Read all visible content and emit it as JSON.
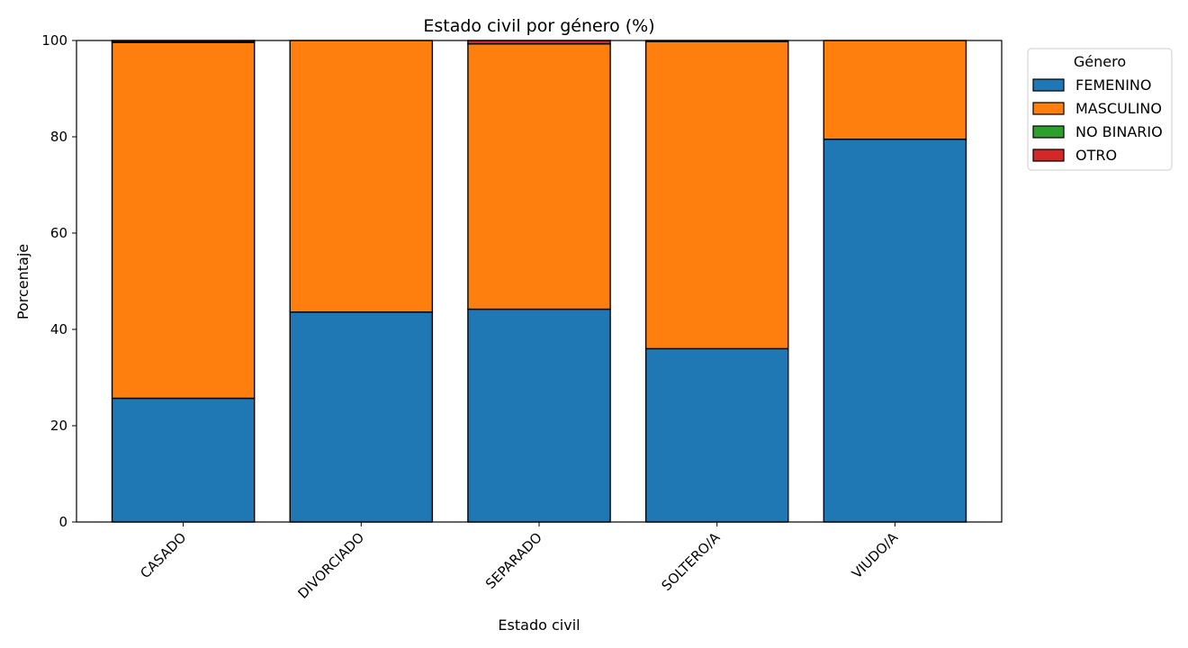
{
  "chart_data": {
    "type": "bar",
    "stacked": true,
    "title": "Estado civil por género (%)",
    "xlabel": "Estado civil",
    "ylabel": "Porcentaje",
    "ylim": [
      0,
      100
    ],
    "yticks": [
      0,
      20,
      40,
      60,
      80,
      100
    ],
    "categories": [
      "CASADO",
      "DIVORCIADO",
      "SEPARADO",
      "SOLTERO/A",
      "VIUDO/A"
    ],
    "legend": {
      "title": "Género",
      "placement": "outside-top-right"
    },
    "grid": false,
    "series": [
      {
        "name": "FEMENINO",
        "color": "#1f77b4",
        "values": [
          25.7,
          43.6,
          44.2,
          36.0,
          79.5
        ]
      },
      {
        "name": "MASCULINO",
        "color": "#ff7f0e",
        "values": [
          73.9,
          56.4,
          55.1,
          63.8,
          20.5
        ]
      },
      {
        "name": "NO BINARIO",
        "color": "#2ca02c",
        "values": [
          0.1,
          0.0,
          0.0,
          0.0,
          0.0
        ]
      },
      {
        "name": "OTRO",
        "color": "#d62728",
        "values": [
          0.3,
          0.0,
          0.7,
          0.2,
          0.0
        ]
      }
    ]
  }
}
